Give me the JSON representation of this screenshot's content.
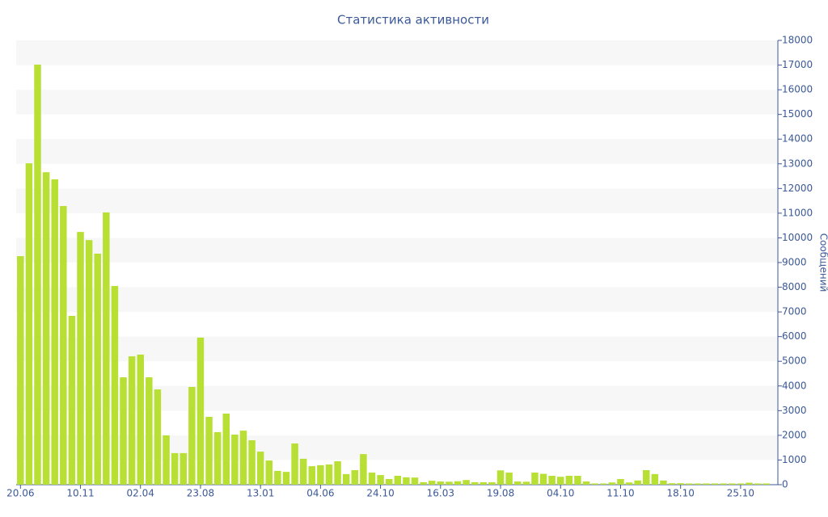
{
  "chart_data": {
    "type": "bar",
    "title": "Статистика активности",
    "y_label": "Сообщений",
    "categories": [
      "20.06",
      null,
      null,
      null,
      null,
      null,
      null,
      "10.11",
      null,
      null,
      null,
      null,
      null,
      null,
      "02.04",
      null,
      null,
      null,
      null,
      null,
      null,
      "23.08",
      null,
      null,
      null,
      null,
      null,
      null,
      "13.01",
      null,
      null,
      null,
      null,
      null,
      null,
      "04.06",
      null,
      null,
      null,
      null,
      null,
      null,
      "24.10",
      null,
      null,
      null,
      null,
      null,
      null,
      "16.03",
      null,
      null,
      null,
      null,
      null,
      null,
      "19.08",
      null,
      null,
      null,
      null,
      null,
      null,
      "04.10",
      null,
      null,
      null,
      null,
      null,
      null,
      "11.10",
      null,
      null,
      null,
      null,
      null,
      null,
      "18.10",
      null,
      null,
      null,
      null,
      null,
      null,
      "25.10",
      null,
      null,
      null
    ],
    "values": [
      9260,
      13020,
      17020,
      12660,
      12370,
      11290,
      6840,
      10240,
      9910,
      9360,
      11030,
      8050,
      4350,
      5200,
      5270,
      4350,
      3860,
      2000,
      1280,
      1280,
      3960,
      5960,
      2750,
      2130,
      2880,
      2030,
      2190,
      1800,
      1340,
      980,
      560,
      520,
      1670,
      1050,
      750,
      790,
      820,
      950,
      430,
      590,
      1240,
      490,
      390,
      230,
      360,
      300,
      290,
      100,
      160,
      130,
      120,
      140,
      190,
      100,
      100,
      100,
      580,
      490,
      130,
      120,
      490,
      440,
      360,
      320,
      360,
      360,
      130,
      50,
      50,
      90,
      230,
      90,
      170,
      590,
      430,
      170,
      60,
      60,
      50,
      50,
      50,
      50,
      50,
      50,
      50,
      80,
      50,
      50
    ],
    "color": "#b8e034",
    "ylim": [
      0,
      18000
    ],
    "yticks": [
      0,
      1000,
      2000,
      3000,
      4000,
      5000,
      6000,
      7000,
      8000,
      9000,
      10000,
      11000,
      12000,
      13000,
      14000,
      15000,
      16000,
      17000,
      18000
    ],
    "y_axis_side": "right",
    "stripes": true
  }
}
